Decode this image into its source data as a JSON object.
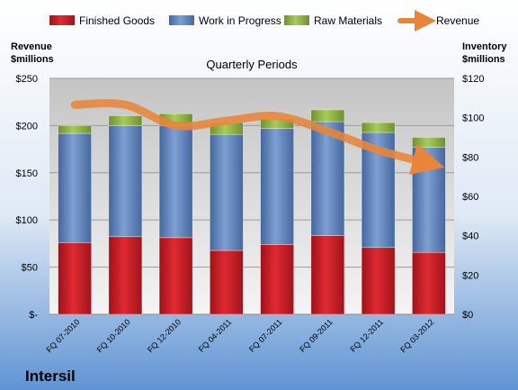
{
  "chart_data": {
    "type": "bar",
    "stacked": true,
    "title": "Quarterly Periods",
    "brand": "Intersil",
    "y_left_label_line1": "Revenue",
    "y_left_label_line2": "$millions",
    "y_right_label_line1": "Inventory",
    "y_right_label_line2": "$millions",
    "ylim_left": [
      0,
      250
    ],
    "ylim_right": [
      0,
      120
    ],
    "y_left_ticks": [
      "$-",
      "$50",
      "$100",
      "$150",
      "$200",
      "$250"
    ],
    "y_right_ticks": [
      "$0",
      "$20",
      "$40",
      "$60",
      "$80",
      "$100",
      "$120"
    ],
    "legend_position": "top",
    "grid": true,
    "categories": [
      "FQ 07-2010",
      "FQ 10-2010",
      "FQ 12-2010",
      "FQ 04-2011",
      "FQ 07-2011",
      "FQ 09-2011",
      "FQ 12-2011",
      "FQ 03-2012"
    ],
    "series": [
      {
        "name": "Finished Goods",
        "axis": "right",
        "color": "#c8202a",
        "values": [
          36.5,
          39.5,
          39,
          32.5,
          35.5,
          40,
          34,
          31.5
        ]
      },
      {
        "name": "Work in Progress",
        "axis": "right",
        "color": "#5b7db8",
        "values": [
          55.5,
          56.5,
          57,
          59,
          59,
          58,
          58.5,
          53.5
        ]
      },
      {
        "name": "Raw Materials",
        "axis": "right",
        "color": "#8db040",
        "values": [
          4,
          5,
          6,
          6,
          5,
          6,
          5,
          5
        ]
      },
      {
        "name": "Revenue",
        "axis": "left",
        "type": "line",
        "color": "#e8853a",
        "values": [
          222,
          222,
          200,
          205,
          210,
          194,
          174,
          160
        ]
      }
    ]
  }
}
